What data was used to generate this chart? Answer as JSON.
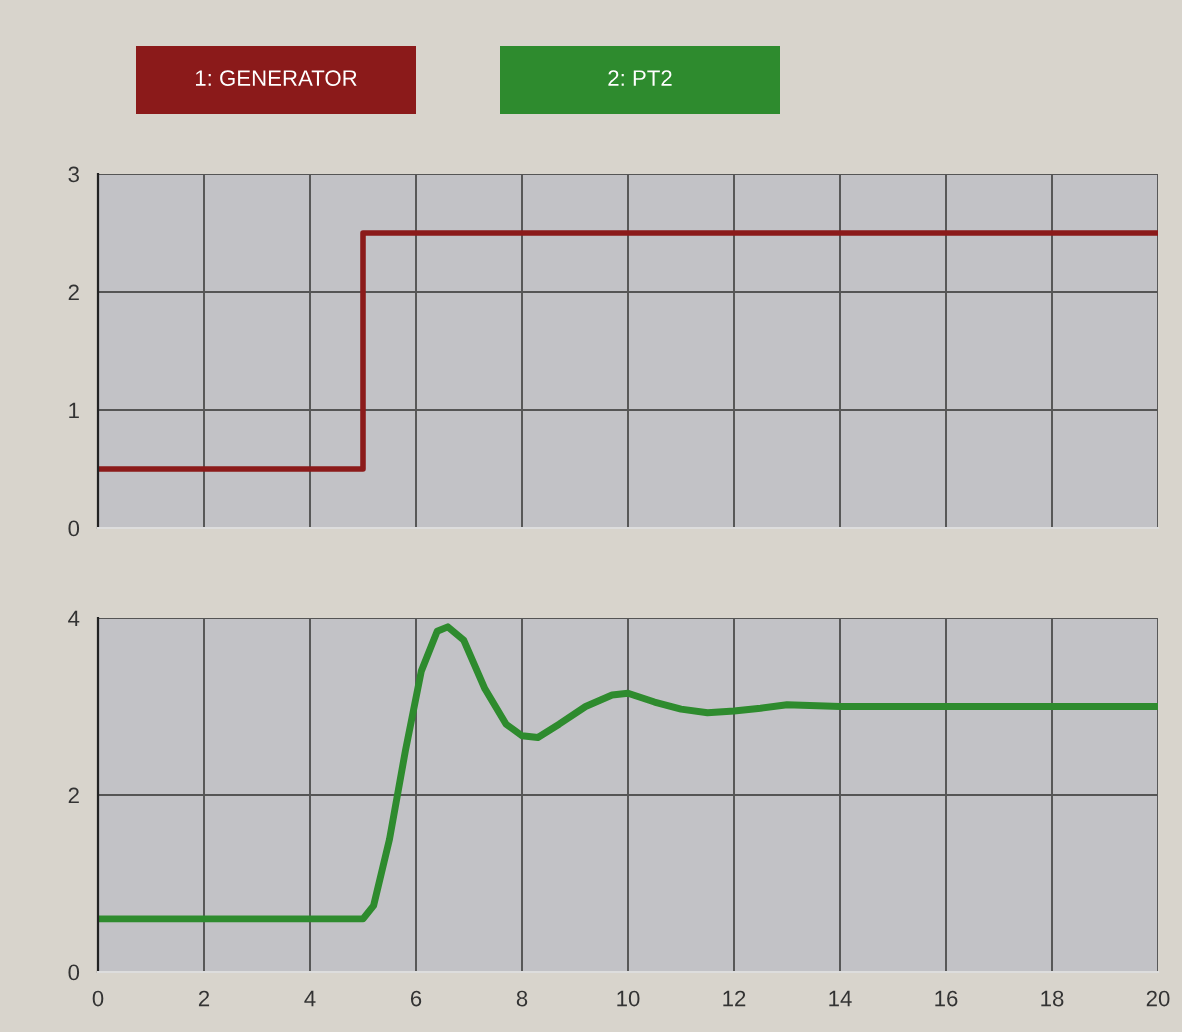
{
  "chart_data": [
    {
      "type": "step",
      "x": [
        0,
        5,
        20
      ],
      "series": [
        {
          "name": "1: GENERATOR",
          "color": "#8b1a1a",
          "values": [
            0.5,
            2.5,
            2.5
          ]
        }
      ],
      "xlim": [
        0,
        20
      ],
      "xticks": [
        0,
        2,
        4,
        6,
        8,
        10,
        12,
        14,
        16,
        18,
        20
      ],
      "ylim": [
        0,
        3
      ],
      "yticks": [
        0,
        1,
        2,
        3
      ],
      "tick_labels": "y",
      "grid": true,
      "legend": "top"
    },
    {
      "type": "line",
      "x": [
        0,
        5.0,
        5.2,
        5.5,
        5.8,
        6.1,
        6.4,
        6.6,
        6.9,
        7.3,
        7.7,
        8.0,
        8.3,
        8.7,
        9.2,
        9.7,
        10.0,
        10.5,
        11.0,
        11.5,
        12.0,
        12.5,
        13.0,
        14.0,
        20.0
      ],
      "series": [
        {
          "name": "2: PT2",
          "color": "#2e8b2e",
          "values": [
            0.6,
            0.6,
            0.75,
            1.5,
            2.5,
            3.4,
            3.85,
            3.9,
            3.75,
            3.2,
            2.8,
            2.67,
            2.65,
            2.8,
            3.0,
            3.13,
            3.15,
            3.05,
            2.97,
            2.93,
            2.95,
            2.98,
            3.02,
            3.0,
            3.0
          ]
        }
      ],
      "xlim": [
        0,
        20
      ],
      "xticks": [
        0,
        2,
        4,
        6,
        8,
        10,
        12,
        14,
        16,
        18,
        20
      ],
      "ylim": [
        0,
        4
      ],
      "yticks": [
        0,
        2,
        4
      ],
      "grid": true,
      "legend": "top"
    }
  ]
}
